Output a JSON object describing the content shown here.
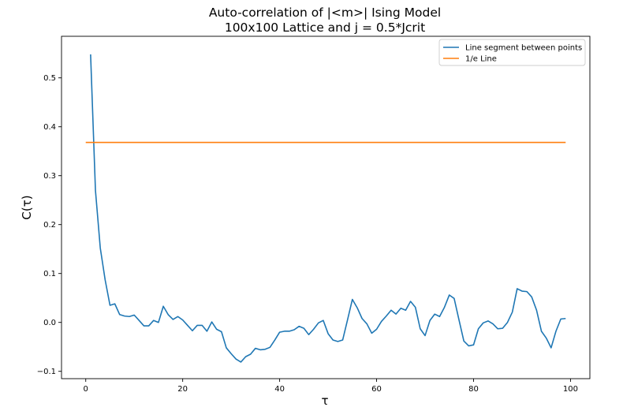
{
  "chart_data": {
    "type": "line",
    "title": "Auto-correlation of |<m>| Ising Model",
    "subtitle": "100x100 Lattice and j = 0.5*Jcrit",
    "xlabel": "τ",
    "ylabel": "C(τ)",
    "xlim": [
      -5,
      104
    ],
    "ylim": [
      -0.115,
      0.585
    ],
    "xticks": [
      0,
      20,
      40,
      60,
      80,
      100
    ],
    "xtick_labels": [
      "0",
      "20",
      "40",
      "60",
      "80",
      "100"
    ],
    "yticks": [
      -0.1,
      0.0,
      0.1,
      0.2,
      0.3,
      0.4,
      0.5
    ],
    "ytick_labels": [
      "−0.1",
      "0.0",
      "0.1",
      "0.2",
      "0.3",
      "0.4",
      "0.5"
    ],
    "grid": false,
    "legend_position": "top-right",
    "series": [
      {
        "name": "Line segment between points",
        "color": "#1f77b4",
        "x": [
          1,
          2,
          3,
          4,
          5,
          6,
          7,
          8,
          9,
          10,
          11,
          12,
          13,
          14,
          15,
          16,
          17,
          18,
          19,
          20,
          21,
          22,
          23,
          24,
          25,
          26,
          27,
          28,
          29,
          30,
          31,
          32,
          33,
          34,
          35,
          36,
          37,
          38,
          39,
          40,
          41,
          42,
          43,
          44,
          45,
          46,
          47,
          48,
          49,
          50,
          51,
          52,
          53,
          54,
          55,
          56,
          57,
          58,
          59,
          60,
          61,
          62,
          63,
          64,
          65,
          66,
          67,
          68,
          69,
          70,
          71,
          72,
          73,
          74,
          75,
          76,
          77,
          78,
          79,
          80,
          81,
          82,
          83,
          84,
          85,
          86,
          87,
          88,
          89,
          90,
          91,
          92,
          93,
          94,
          95,
          96,
          97,
          98,
          99
        ],
        "y": [
          0.548,
          0.27,
          0.152,
          0.087,
          0.035,
          0.038,
          0.016,
          0.013,
          0.012,
          0.015,
          0.004,
          -0.007,
          -0.007,
          0.004,
          0.0,
          0.033,
          0.016,
          0.006,
          0.012,
          0.005,
          -0.006,
          -0.017,
          -0.006,
          -0.006,
          -0.018,
          0.001,
          -0.014,
          -0.019,
          -0.052,
          -0.064,
          -0.075,
          -0.081,
          -0.07,
          -0.065,
          -0.053,
          -0.056,
          -0.055,
          -0.051,
          -0.036,
          -0.02,
          -0.018,
          -0.018,
          -0.015,
          -0.008,
          -0.012,
          -0.025,
          -0.014,
          -0.001,
          0.004,
          -0.023,
          -0.036,
          -0.039,
          -0.036,
          0.005,
          0.047,
          0.03,
          0.008,
          -0.003,
          -0.022,
          -0.014,
          0.002,
          0.013,
          0.025,
          0.017,
          0.029,
          0.025,
          0.043,
          0.031,
          -0.013,
          -0.027,
          0.004,
          0.017,
          0.012,
          0.031,
          0.056,
          0.049,
          0.005,
          -0.038,
          -0.048,
          -0.046,
          -0.013,
          -0.001,
          0.003,
          -0.003,
          -0.013,
          -0.012,
          0.0,
          0.021,
          0.069,
          0.064,
          0.063,
          0.052,
          0.025,
          -0.018,
          -0.032,
          -0.052,
          -0.018,
          0.007,
          0.008
        ]
      },
      {
        "name": "1/e Line",
        "color": "#ff7f0e",
        "x": [
          0,
          99
        ],
        "y": [
          0.3679,
          0.3679
        ]
      }
    ]
  }
}
